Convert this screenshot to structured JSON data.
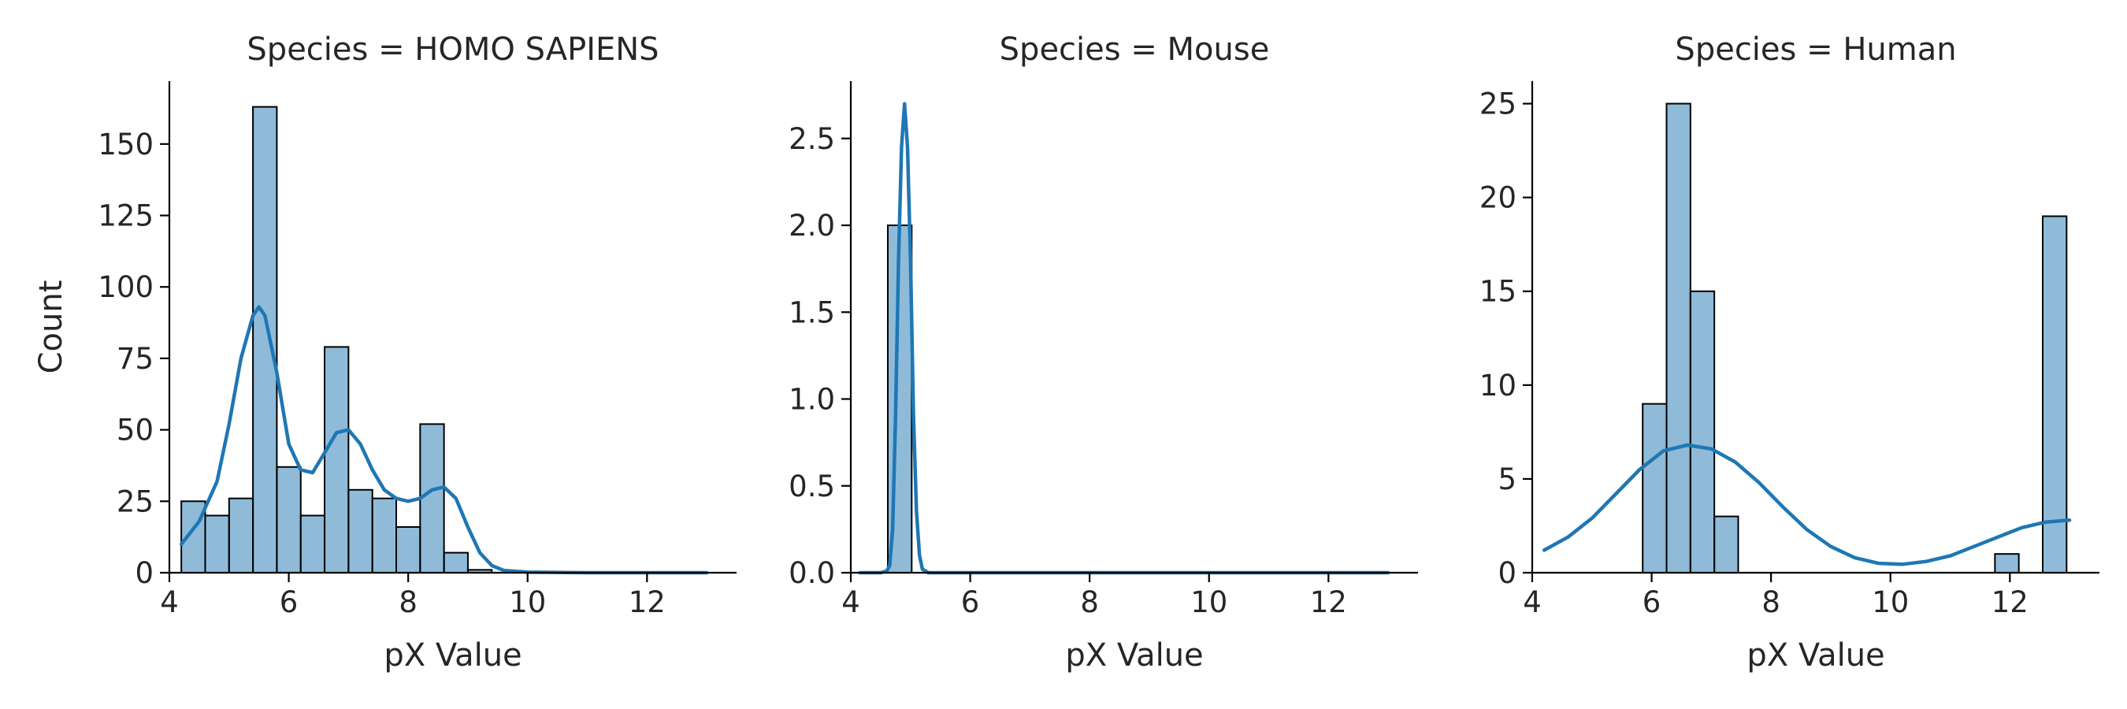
{
  "chart_data": [
    {
      "type": "bar",
      "title": "Species = HOMO SAPIENS",
      "xlabel": "pX Value",
      "ylabel": "Count",
      "xlim": [
        4.0,
        13.5
      ],
      "ylim": [
        0,
        172
      ],
      "xticks": [
        4,
        6,
        8,
        10,
        12
      ],
      "yticks": [
        0,
        25,
        50,
        75,
        100,
        125,
        150
      ],
      "bars": [
        {
          "x0": 4.2,
          "x1": 4.6,
          "value": 25
        },
        {
          "x0": 4.6,
          "x1": 5.0,
          "value": 20
        },
        {
          "x0": 5.0,
          "x1": 5.4,
          "value": 26
        },
        {
          "x0": 5.4,
          "x1": 5.8,
          "value": 163
        },
        {
          "x0": 5.8,
          "x1": 6.2,
          "value": 37
        },
        {
          "x0": 6.2,
          "x1": 6.6,
          "value": 20
        },
        {
          "x0": 6.6,
          "x1": 7.0,
          "value": 79
        },
        {
          "x0": 7.0,
          "x1": 7.4,
          "value": 29
        },
        {
          "x0": 7.4,
          "x1": 7.8,
          "value": 26
        },
        {
          "x0": 7.8,
          "x1": 8.2,
          "value": 16
        },
        {
          "x0": 8.2,
          "x1": 8.6,
          "value": 52
        },
        {
          "x0": 8.6,
          "x1": 9.0,
          "value": 7
        },
        {
          "x0": 9.0,
          "x1": 9.4,
          "value": 1
        }
      ],
      "kde": {
        "x": [
          4.2,
          4.5,
          4.8,
          5.0,
          5.2,
          5.4,
          5.5,
          5.6,
          5.8,
          6.0,
          6.2,
          6.4,
          6.6,
          6.8,
          7.0,
          7.2,
          7.4,
          7.6,
          7.8,
          8.0,
          8.2,
          8.4,
          8.6,
          8.8,
          9.0,
          9.2,
          9.4,
          9.6,
          10.0,
          11.0,
          12.0,
          13.0
        ],
        "y": [
          10,
          18,
          32,
          52,
          75,
          90,
          93,
          90,
          70,
          45,
          36,
          35,
          42,
          49,
          50,
          45,
          36,
          29,
          26,
          25,
          26,
          29,
          30,
          26,
          16,
          7,
          2.5,
          0.8,
          0.2,
          0,
          0,
          0
        ]
      }
    },
    {
      "type": "bar",
      "title": "Species = Mouse",
      "xlabel": "pX Value",
      "ylabel": "",
      "xlim": [
        4.0,
        13.5
      ],
      "ylim": [
        0,
        2.83
      ],
      "xticks": [
        4,
        6,
        8,
        10,
        12
      ],
      "yticks": [
        0.0,
        0.5,
        1.0,
        1.5,
        2.0,
        2.5
      ],
      "ytick_labels": [
        "0.0",
        "0.5",
        "1.0",
        "1.5",
        "2.0",
        "2.5"
      ],
      "bars": [
        {
          "x0": 4.62,
          "x1": 5.02,
          "value": 2
        }
      ],
      "kde": {
        "x": [
          4.15,
          4.5,
          4.6,
          4.65,
          4.7,
          4.75,
          4.8,
          4.85,
          4.9,
          4.95,
          5.0,
          5.05,
          5.1,
          5.15,
          5.2,
          5.3,
          6.0,
          8.0,
          10.0,
          13.0
        ],
        "y": [
          0,
          0,
          0.01,
          0.04,
          0.25,
          0.9,
          1.8,
          2.45,
          2.7,
          2.45,
          1.8,
          0.9,
          0.35,
          0.1,
          0.02,
          0,
          0,
          0,
          0,
          0
        ]
      }
    },
    {
      "type": "bar",
      "title": "Species = Human",
      "xlabel": "pX Value",
      "ylabel": "",
      "xlim": [
        4.0,
        13.5
      ],
      "ylim": [
        0,
        26.2
      ],
      "xticks": [
        4,
        6,
        8,
        10,
        12
      ],
      "yticks": [
        0,
        5,
        10,
        15,
        20,
        25
      ],
      "bars": [
        {
          "x0": 5.85,
          "x1": 6.25,
          "value": 9
        },
        {
          "x0": 6.25,
          "x1": 6.65,
          "value": 25
        },
        {
          "x0": 6.65,
          "x1": 7.05,
          "value": 15
        },
        {
          "x0": 7.05,
          "x1": 7.45,
          "value": 3
        },
        {
          "x0": 11.75,
          "x1": 12.15,
          "value": 1
        },
        {
          "x0": 12.55,
          "x1": 12.95,
          "value": 19
        }
      ],
      "kde": {
        "x": [
          4.2,
          4.6,
          5.0,
          5.4,
          5.8,
          6.2,
          6.6,
          7.0,
          7.4,
          7.8,
          8.2,
          8.6,
          9.0,
          9.4,
          9.8,
          10.2,
          10.6,
          11.0,
          11.4,
          11.8,
          12.2,
          12.6,
          13.0
        ],
        "y": [
          1.2,
          1.9,
          2.9,
          4.2,
          5.5,
          6.5,
          6.8,
          6.6,
          5.9,
          4.8,
          3.5,
          2.3,
          1.4,
          0.8,
          0.5,
          0.45,
          0.6,
          0.9,
          1.4,
          1.9,
          2.4,
          2.7,
          2.8
        ]
      }
    }
  ]
}
